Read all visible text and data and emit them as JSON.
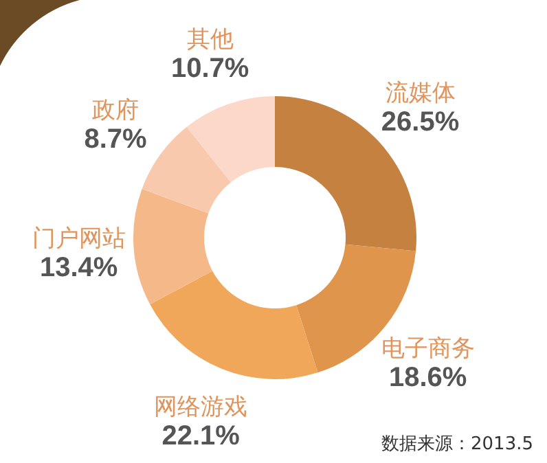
{
  "chart_data": {
    "type": "donut",
    "categories": [
      "流媒体",
      "电子商务",
      "网络游戏",
      "门户网站",
      "政府",
      "其他"
    ],
    "values": [
      26.5,
      18.6,
      22.1,
      13.4,
      8.7,
      10.7
    ],
    "value_labels": [
      "26.5%",
      "18.6%",
      "22.1%",
      "13.4%",
      "8.7%",
      "10.7%"
    ],
    "colors": [
      "#c5813f",
      "#e0954c",
      "#f1a75a",
      "#f5b889",
      "#f8c9ad",
      "#fbd8c8"
    ],
    "annotations": [
      "数据来源：2013.5"
    ]
  }
}
